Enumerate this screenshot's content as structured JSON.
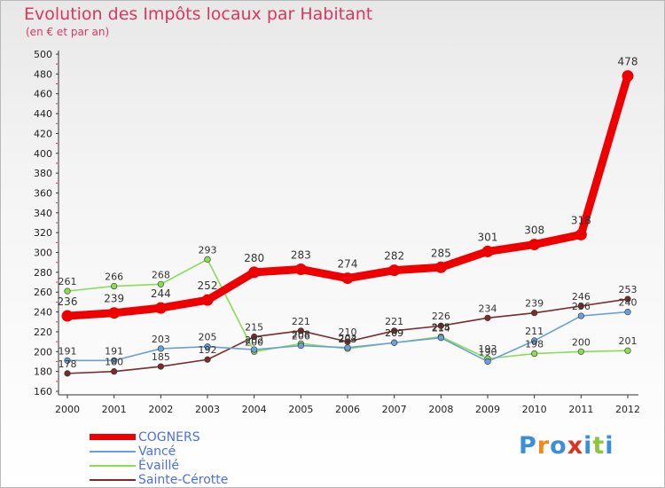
{
  "title": "Evolution des Impôts locaux par Habitant",
  "subtitle": "(en € et par an)",
  "logo": {
    "text": [
      "P",
      "r",
      "o",
      "x",
      "i",
      "t",
      "i"
    ],
    "colors": [
      "#3a8fd8",
      "#f08a18",
      "#3a8fd8",
      "#e03020",
      "#3a8fd8",
      "#8cc63f",
      "#3a8fd8"
    ]
  },
  "chart_data": {
    "type": "line",
    "x": [
      "2000",
      "2001",
      "2002",
      "2003",
      "2004",
      "2005",
      "2006",
      "2007",
      "2008",
      "2009",
      "2010",
      "2011",
      "2012"
    ],
    "ylim": [
      160,
      500
    ],
    "yticks": [
      "160",
      "180",
      "200",
      "220",
      "240",
      "260",
      "280",
      "300",
      "320",
      "340",
      "360",
      "380",
      "400",
      "420",
      "440",
      "460",
      "480",
      "500"
    ],
    "grid": false,
    "legend_position": "bottom-left",
    "series": [
      {
        "name": "COGNERS",
        "color": "#ee0000",
        "values": [
          236,
          239,
          244,
          252,
          280,
          283,
          274,
          282,
          285,
          301,
          308,
          318,
          478
        ],
        "labels": [
          "236",
          "239",
          "244",
          "252",
          "280",
          "283",
          "274",
          "282",
          "285",
          "301",
          "308",
          "318",
          "478"
        ]
      },
      {
        "name": "Vancé",
        "color": "#6aa0d8",
        "values": [
          191,
          191,
          203,
          205,
          202,
          206,
          204,
          209,
          214,
          190,
          211,
          236,
          240
        ],
        "labels": [
          "191",
          "191",
          "203",
          "205",
          "202",
          "206",
          "204",
          "209",
          "214",
          "190",
          "211",
          "236",
          "240"
        ]
      },
      {
        "name": "Évaillé",
        "color": "#88dd55",
        "values": [
          261,
          266,
          268,
          293,
          200,
          208,
          203,
          209,
          215,
          193,
          198,
          200,
          201
        ],
        "labels": [
          "261",
          "266",
          "268",
          "293",
          "200",
          "208",
          "203",
          "209",
          "215",
          "193",
          "198",
          "200",
          "201"
        ]
      },
      {
        "name": "Sainte-Cérotte",
        "color": "#7a2c2c",
        "values": [
          178,
          180,
          185,
          192,
          215,
          221,
          210,
          221,
          226,
          234,
          239,
          246,
          253
        ],
        "labels": [
          "178",
          "180",
          "185",
          "192",
          "215",
          "221",
          "210",
          "221",
          "226",
          "234",
          "239",
          "246",
          "253"
        ]
      }
    ]
  }
}
